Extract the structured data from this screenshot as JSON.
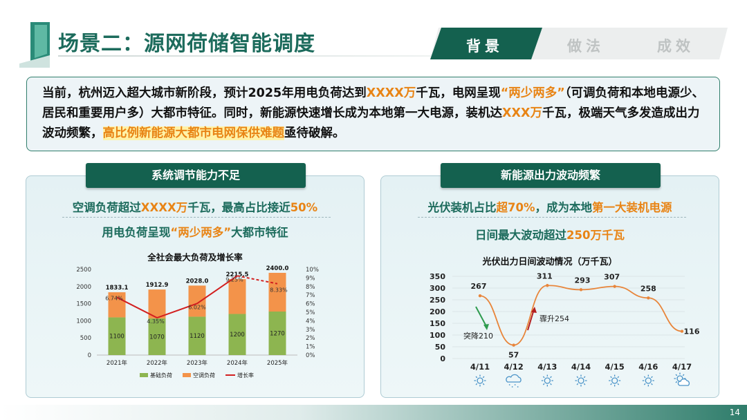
{
  "header": {
    "title": "场景二：源网荷储智能调度",
    "tabs": [
      {
        "label": "背景",
        "active": true
      },
      {
        "label": "做法",
        "active": false
      },
      {
        "label": "成效",
        "active": false
      }
    ]
  },
  "intro": {
    "p1": "当前，杭州迈入超大城市新阶段，预计2025年用电负荷达到",
    "p1_hl": "XXXX万",
    "p2": "千瓦，电网呈现",
    "p2_hl": "“两少两多”",
    "p3": "（可调负荷和本地电源少、居民和重要用户多）大都市特征。同时，新能源快速增长成为本地第一大电源，装机达",
    "p3_hl": "XXX万",
    "p4": "千瓦，极端天气多发造成出力波动频繁，",
    "p4_hl": "高比例新能源大都市电网保供难题",
    "p5": "亟待破解。"
  },
  "left_panel": {
    "header": "系统调节能力不足",
    "sub1_a": "空调负荷超过",
    "sub1_hl1": "XXXX万",
    "sub1_b": "千瓦，最高占比接近",
    "sub1_hl2": "50%",
    "sub2_a": "用电负荷呈现",
    "sub2_hl": "“两少两多”",
    "sub2_b": "大都市特征"
  },
  "right_panel": {
    "header": "新能源出力波动频繁",
    "sub1_a": "光伏装机占比",
    "sub1_hl1": "超70%",
    "sub1_b": "，成为本地",
    "sub1_hl2": "第一大装机电源",
    "sub2_a": "日间最大波动超过",
    "sub2_hl": "250万千瓦"
  },
  "chart_data": [
    {
      "type": "bar",
      "title": "全社会最大负荷及增长率",
      "categories": [
        "2021年",
        "2022年",
        "2023年",
        "2024年",
        "2025年"
      ],
      "series": [
        {
          "name": "基础负荷",
          "values": [
            1100,
            1070,
            1120,
            1200,
            1270
          ],
          "color": "#8db550"
        },
        {
          "name": "空调负荷",
          "values": [
            733.1,
            842.9,
            908,
            1015.5,
            1130
          ],
          "color": "#f3934a"
        },
        {
          "name": "增长率",
          "type": "line",
          "axis": "right",
          "values": [
            6.74,
            4.35,
            6.02,
            9.25,
            8.33
          ],
          "value_labels": [
            "6.74%",
            "4.35%",
            "6.02%",
            "9.25%",
            "8.33%"
          ],
          "color": "#d21f1f"
        }
      ],
      "totals": [
        "1833.1",
        "1912.9",
        "2028.0",
        "2215.5",
        "2400.0"
      ],
      "base_labels": [
        "1100",
        "1070",
        "1120",
        "1200",
        "1270"
      ],
      "y_ticks": [
        "0",
        "500",
        "1000",
        "1500",
        "2000",
        "2500"
      ],
      "y2_ticks": [
        "0%",
        "1%",
        "2%",
        "3%",
        "4%",
        "5%",
        "6%",
        "7%",
        "8%",
        "9%",
        "10%"
      ],
      "ylim": [
        0,
        2500
      ],
      "y2lim": [
        0,
        10
      ],
      "legend_position": "bottom"
    },
    {
      "type": "line",
      "title": "光伏出力日间波动情况（万千瓦）",
      "categories": [
        "4/11",
        "4/12",
        "4/13",
        "4/14",
        "4/15",
        "4/16",
        "4/17"
      ],
      "series": [
        {
          "values": [
            267,
            57,
            311,
            293,
            307,
            258,
            116
          ],
          "color": "#e8853a"
        }
      ],
      "value_labels": [
        "267",
        "57",
        "311",
        "293",
        "307",
        "258",
        "116"
      ],
      "y_ticks": [
        "0",
        "50",
        "100",
        "150",
        "200",
        "250",
        "300",
        "350"
      ],
      "ylim": [
        0,
        350
      ],
      "weather": [
        "sunny-icon",
        "rain-icon",
        "sunny-icon",
        "sunny-icon",
        "sunny-icon",
        "sunny-icon",
        "partly-cloudy-icon"
      ],
      "annotations": [
        {
          "text": "突降210",
          "color": "#2e9b4e"
        },
        {
          "text": "骤升254",
          "color": "#b31f1f"
        }
      ]
    }
  ],
  "footer": {
    "page": "14"
  }
}
